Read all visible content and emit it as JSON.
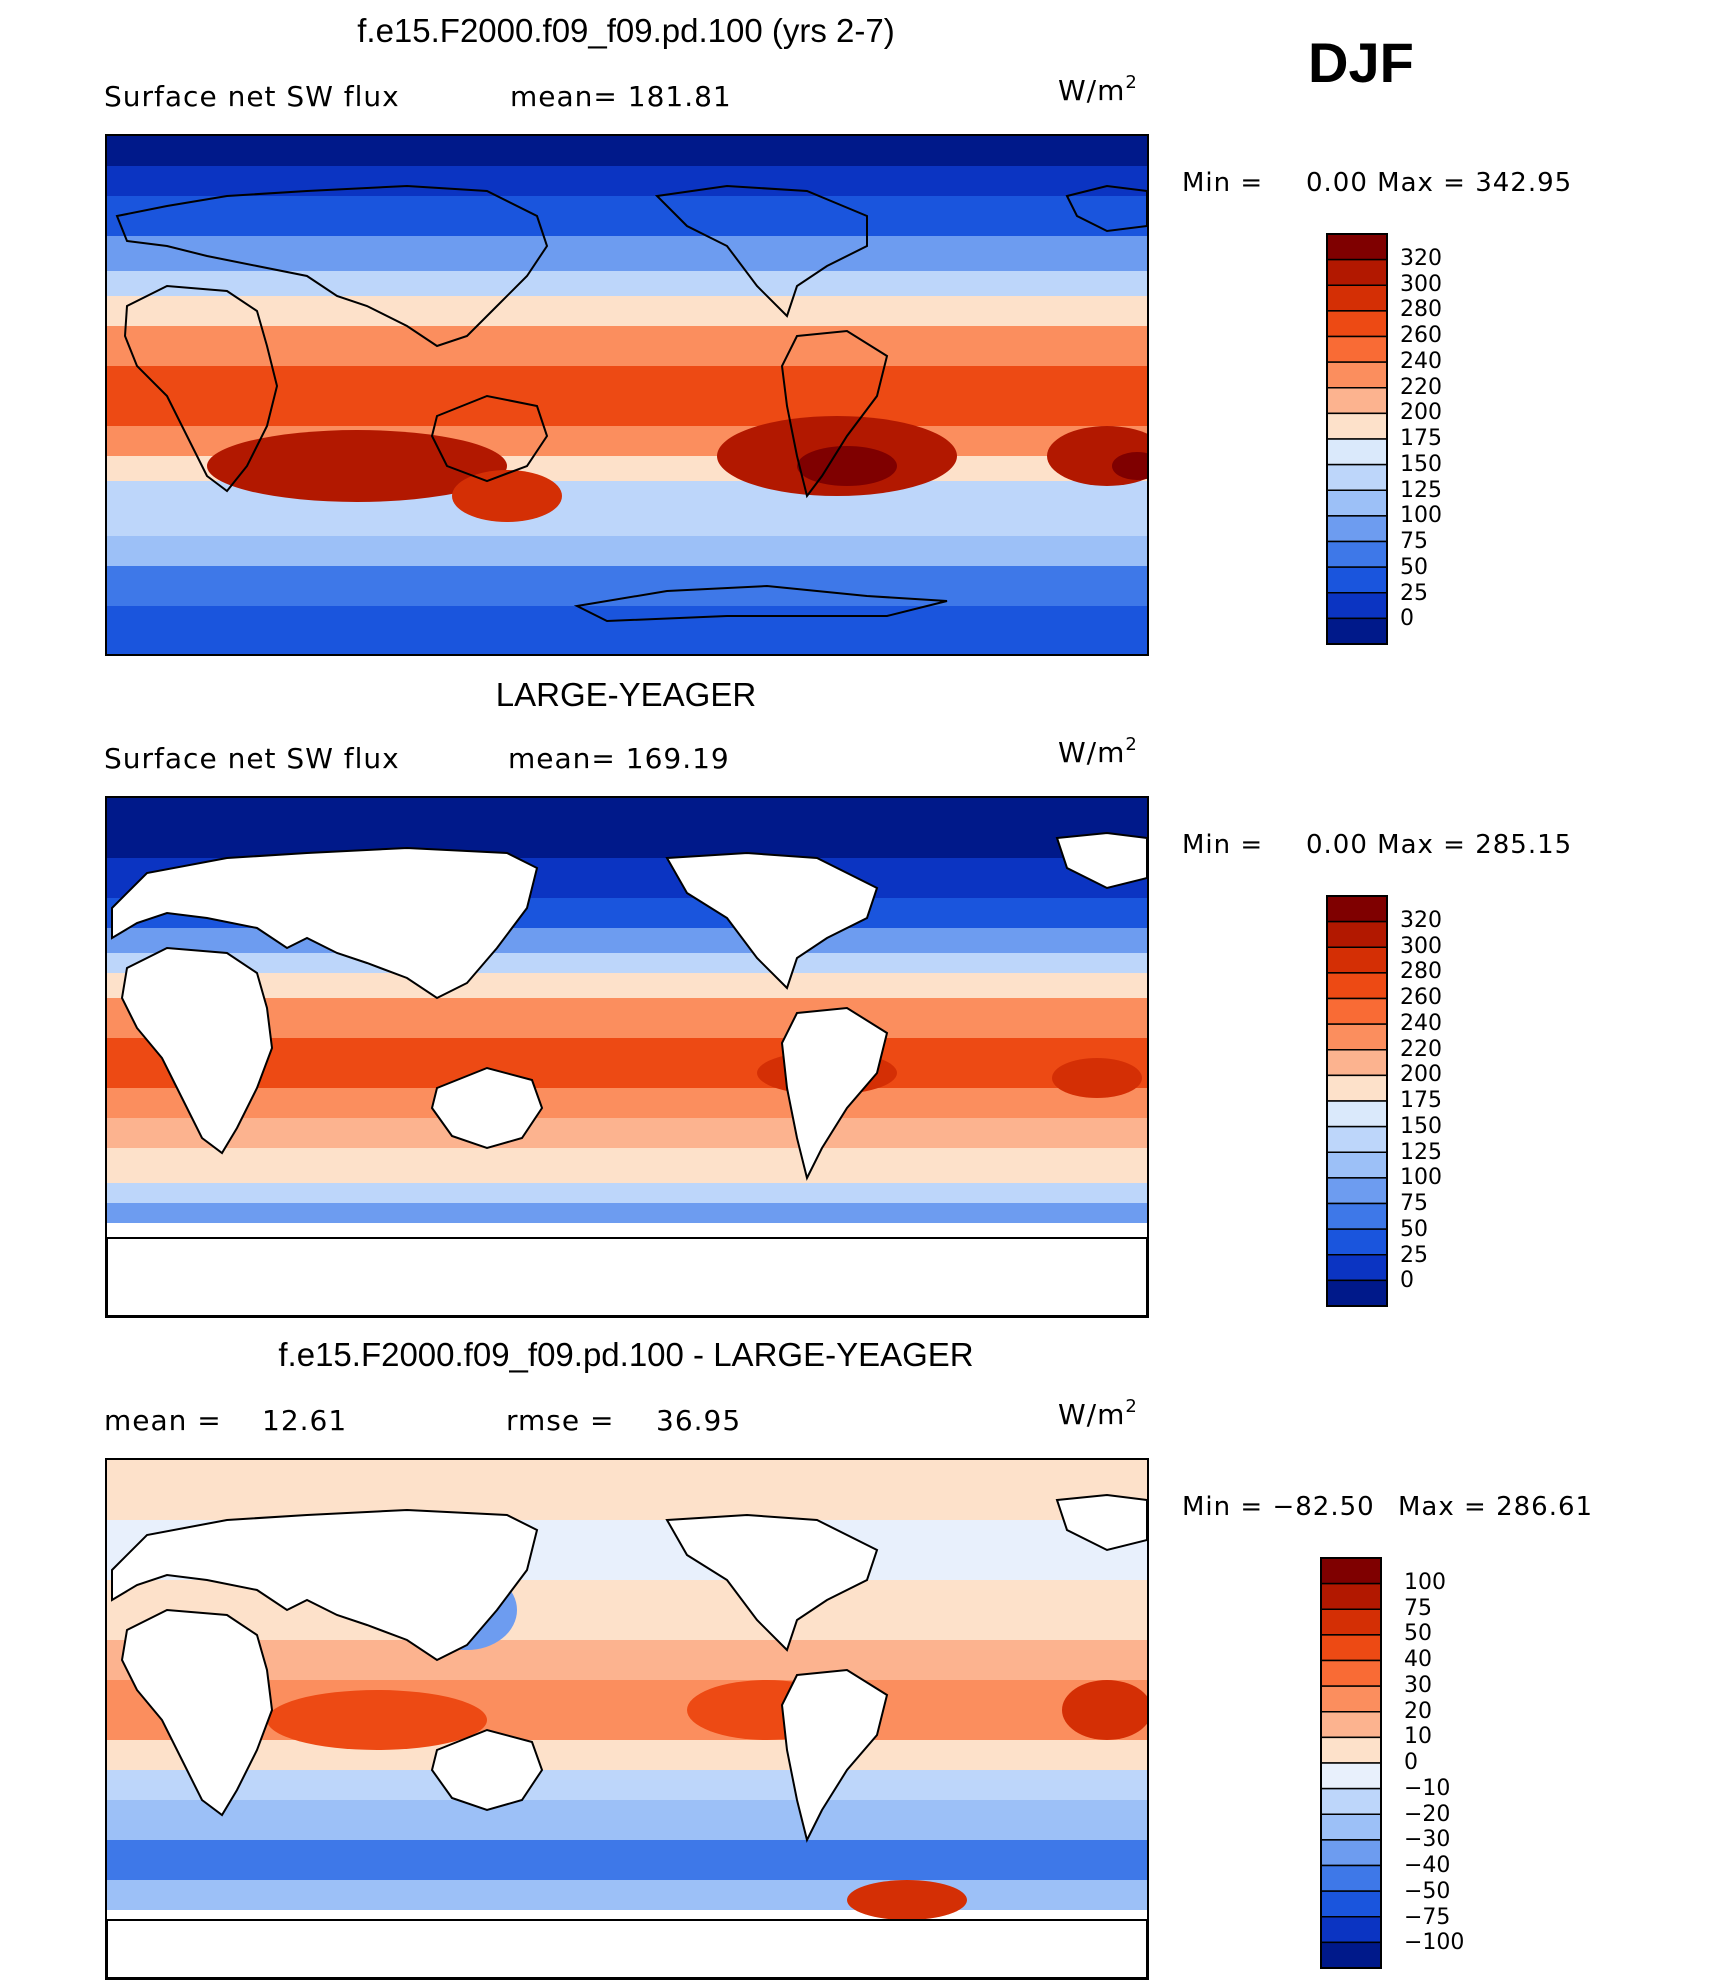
{
  "season": "DJF",
  "panels": [
    {
      "title": "f.e15.F2000.f09_f09.pd.100 (yrs 2-7)",
      "left_label": "Surface net SW flux",
      "stat1": "mean= 181.81",
      "stat2": "",
      "units": "W/m",
      "units_sup": "2",
      "minmax_min": "Min =",
      "minmax_max": "0.00 Max = 342.95",
      "colorbar_levels": [
        "320",
        "300",
        "280",
        "260",
        "240",
        "220",
        "200",
        "175",
        "150",
        "125",
        "100",
        "75",
        "50",
        "25",
        "0"
      ],
      "colorbar_colors": [
        "#7f0000",
        "#b21800",
        "#d42f05",
        "#ed4a14",
        "#f96b35",
        "#fb8e5e",
        "#fcb38f",
        "#fde1ca",
        "#dae9fb",
        "#bdd6fa",
        "#9cc0f7",
        "#6d9cf0",
        "#3e78e8",
        "#1a55dd",
        "#0b34c2",
        "#00198a"
      ]
    },
    {
      "title": "LARGE-YEAGER",
      "left_label": "Surface net SW flux",
      "stat1": "mean= 169.19",
      "stat2": "",
      "units": "W/m",
      "units_sup": "2",
      "minmax_min": "Min =",
      "minmax_max": "0.00 Max = 285.15",
      "colorbar_levels": [
        "320",
        "300",
        "280",
        "260",
        "240",
        "220",
        "200",
        "175",
        "150",
        "125",
        "100",
        "75",
        "50",
        "25",
        "0"
      ],
      "colorbar_colors": [
        "#7f0000",
        "#b21800",
        "#d42f05",
        "#ed4a14",
        "#f96b35",
        "#fb8e5e",
        "#fcb38f",
        "#fde1ca",
        "#dae9fb",
        "#bdd6fa",
        "#9cc0f7",
        "#6d9cf0",
        "#3e78e8",
        "#1a55dd",
        "#0b34c2",
        "#00198a"
      ]
    },
    {
      "title": "f.e15.F2000.f09_f09.pd.100 - LARGE-YEAGER",
      "left_label": "mean =",
      "stat1": "12.61",
      "stat2_label": "rmse =",
      "stat2": "36.95",
      "units": "W/m",
      "units_sup": "2",
      "minmax_min": "Min = −82.50",
      "minmax_max": "Max = 286.61",
      "colorbar_levels": [
        "100",
        "75",
        "50",
        "40",
        "30",
        "20",
        "10",
        "0",
        "−10",
        "−20",
        "−30",
        "−40",
        "−50",
        "−75",
        "−100"
      ],
      "colorbar_colors": [
        "#7f0000",
        "#b21800",
        "#d42f05",
        "#ed4a14",
        "#f96b35",
        "#fb8e5e",
        "#fcb38f",
        "#fde1ca",
        "#e8f0fc",
        "#bdd6fa",
        "#9cc0f7",
        "#6d9cf0",
        "#3e78e8",
        "#1a55dd",
        "#0b34c2",
        "#00198a"
      ]
    }
  ]
}
